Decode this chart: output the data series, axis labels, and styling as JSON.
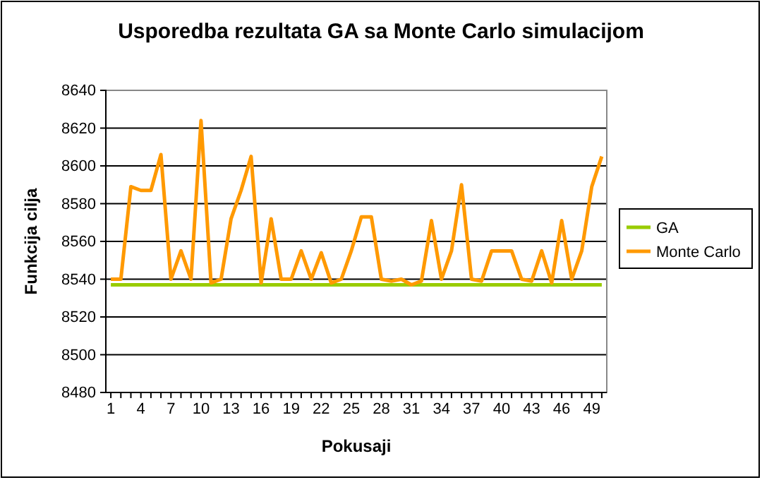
{
  "chart_data": {
    "type": "line",
    "title": "Usporedba rezultata GA sa Monte Carlo simulacijom",
    "xlabel": "Pokusaji",
    "ylabel": "Funkcija cilja",
    "categories": [
      "1",
      null,
      null,
      "4",
      null,
      null,
      "7",
      null,
      null,
      "10",
      null,
      null,
      "13",
      null,
      null,
      "16",
      null,
      null,
      "19",
      null,
      null,
      "22",
      null,
      null,
      "25",
      null,
      null,
      "28",
      null,
      null,
      "31",
      null,
      null,
      "34",
      null,
      null,
      "37",
      null,
      null,
      "40",
      null,
      null,
      "43",
      null,
      null,
      "46",
      null,
      null,
      "49",
      null
    ],
    "series": [
      {
        "name": "GA",
        "color": "#99cc00",
        "values": [
          8537,
          8537,
          8537,
          8537,
          8537,
          8537,
          8537,
          8537,
          8537,
          8537,
          8537,
          8537,
          8537,
          8537,
          8537,
          8537,
          8537,
          8537,
          8537,
          8537,
          8537,
          8537,
          8537,
          8537,
          8537,
          8537,
          8537,
          8537,
          8537,
          8537,
          8537,
          8537,
          8537,
          8537,
          8537,
          8537,
          8537,
          8537,
          8537,
          8537,
          8537,
          8537,
          8537,
          8537,
          8537,
          8537,
          8537,
          8537,
          8537,
          8537
        ]
      },
      {
        "name": "Monte Carlo",
        "color": "#ff9900",
        "values": [
          8540,
          8540,
          8589,
          8587,
          8587,
          8606,
          8540,
          8555,
          8540,
          8624,
          8538,
          8540,
          8572,
          8587,
          8605,
          8538,
          8572,
          8540,
          8540,
          8555,
          8540,
          8554,
          8538,
          8540,
          8555,
          8573,
          8573,
          8540,
          8539,
          8540,
          8537,
          8539,
          8571,
          8540,
          8555,
          8590,
          8540,
          8539,
          8555,
          8555,
          8555,
          8540,
          8539,
          8555,
          8538,
          8571,
          8540,
          8555,
          8589,
          8605
        ]
      }
    ],
    "ylim": [
      8480,
      8640
    ],
    "yticks": [
      8480,
      8500,
      8520,
      8540,
      8560,
      8580,
      8600,
      8620,
      8640
    ],
    "grid": "y",
    "legend": "right",
    "marker": "none",
    "line_style": "solid"
  }
}
